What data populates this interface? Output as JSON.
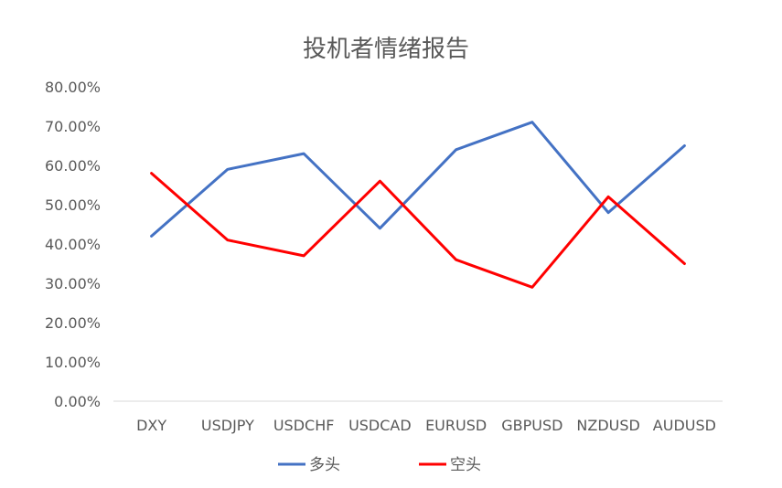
{
  "chart_data": {
    "type": "line",
    "title": "投机者情绪报告",
    "categories": [
      "DXY",
      "USDJPY",
      "USDCHF",
      "USDCAD",
      "EURUSD",
      "GBPUSD",
      "NZDUSD",
      "AUDUSD"
    ],
    "y_ticks": [
      "0.00%",
      "10.00%",
      "20.00%",
      "30.00%",
      "40.00%",
      "50.00%",
      "60.00%",
      "70.00%",
      "80.00%"
    ],
    "ylim": [
      0,
      80
    ],
    "grid": false,
    "legend_position": "bottom",
    "series": [
      {
        "name": "多头",
        "color": "#4472C4",
        "values": [
          42,
          59,
          63,
          44,
          64,
          71,
          48,
          65
        ]
      },
      {
        "name": "空头",
        "color": "#FF0000",
        "values": [
          58,
          41,
          37,
          56,
          36,
          29,
          52,
          35
        ]
      }
    ]
  }
}
